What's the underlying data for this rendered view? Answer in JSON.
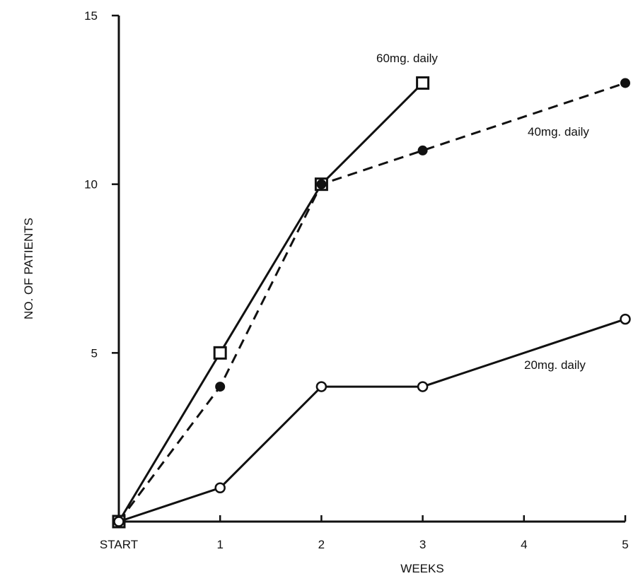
{
  "chart_data": {
    "type": "line",
    "title": "",
    "xlabel": "WEEKS",
    "ylabel": "NO. OF PATIENTS",
    "x_ticks": [
      {
        "value": 0,
        "label": "START"
      },
      {
        "value": 1,
        "label": "1"
      },
      {
        "value": 2,
        "label": "2"
      },
      {
        "value": 3,
        "label": "3"
      },
      {
        "value": 4,
        "label": "4"
      },
      {
        "value": 5,
        "label": "5"
      }
    ],
    "y_ticks": [
      {
        "value": 5,
        "label": "5"
      },
      {
        "value": 10,
        "label": "10"
      },
      {
        "value": 15,
        "label": "15"
      }
    ],
    "xlim": [
      0,
      5
    ],
    "ylim": [
      0,
      15
    ],
    "grid": false,
    "series": [
      {
        "name": "60mg. daily",
        "marker": "open-square",
        "dash": "solid",
        "x": [
          0,
          1,
          2,
          3
        ],
        "y": [
          0,
          5,
          10,
          13
        ]
      },
      {
        "name": "40mg. daily",
        "marker": "filled-circle",
        "dash": "dashed",
        "x": [
          0,
          1,
          2,
          3,
          5
        ],
        "y": [
          0,
          4,
          10,
          11,
          13
        ]
      },
      {
        "name": "20mg. daily",
        "marker": "open-circle",
        "dash": "solid",
        "x": [
          0,
          1,
          2,
          3,
          5
        ],
        "y": [
          0,
          1,
          4,
          4,
          6
        ]
      }
    ],
    "colors": {
      "ink": "#111111",
      "background": "#ffffff"
    }
  }
}
